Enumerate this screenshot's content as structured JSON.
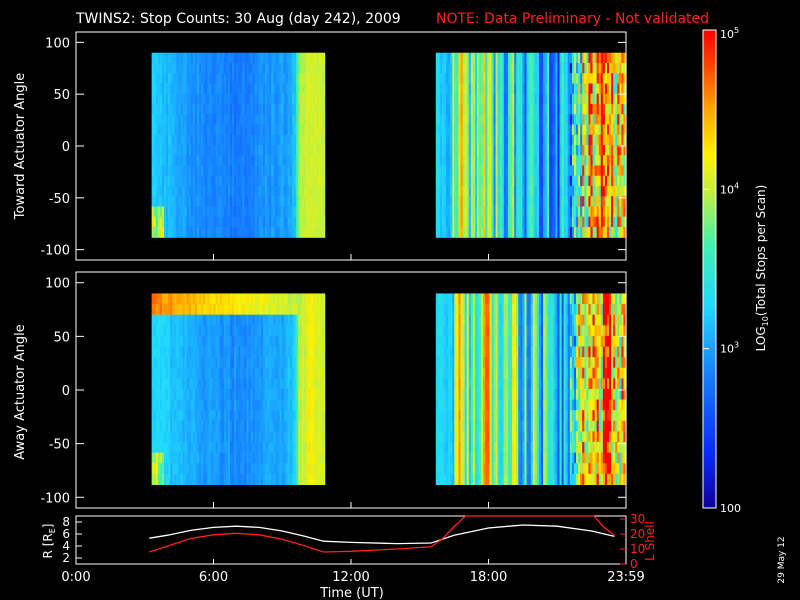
{
  "title": "TWINS2: Stop Counts: 30 Aug (day 242), 2009",
  "note": "NOTE: Data Preliminary - Not validated",
  "datestamp": "29 May 12",
  "colors": {
    "background": "#000000",
    "axis": "#ffffff",
    "note": "#ff2020",
    "l_shell": "#ff2020",
    "r_line": "#ffffff"
  },
  "colorbar": {
    "title": "LOG10(Total Stops per Scan)",
    "title_base": "LOG",
    "title_sub": "10",
    "title_rest": "(Total Stops per Scan)",
    "tick_labels": [
      "100",
      "10",
      "10",
      "10"
    ],
    "tick_exponents": [
      "",
      "3",
      "4",
      "5"
    ],
    "range_log10": [
      2,
      5
    ]
  },
  "chart_data": [
    {
      "type": "heatmap",
      "name": "toward",
      "ylabel": "Toward Actuator Angle",
      "ylim": [
        -110,
        110
      ],
      "yticks": [
        100,
        50,
        0,
        -50,
        -100
      ],
      "ytick_labels": [
        "100",
        "50",
        "0",
        "-50",
        "-100"
      ],
      "xlim_hours": [
        0,
        24
      ],
      "angle_range": [
        -88,
        90
      ],
      "segments": [
        {
          "start": 3.3,
          "end": 10.85
        },
        {
          "start": 15.7,
          "end": 24
        }
      ],
      "profile": [
        [
          3.3,
          3.2
        ],
        [
          4.0,
          3.1
        ],
        [
          5.0,
          2.95
        ],
        [
          6.0,
          2.85
        ],
        [
          7.0,
          2.85
        ],
        [
          8.0,
          2.9
        ],
        [
          9.0,
          3.0
        ],
        [
          9.5,
          3.1
        ],
        [
          9.7,
          3.9
        ],
        [
          10.2,
          4.1
        ],
        [
          10.85,
          4.0
        ],
        [
          15.7,
          3.3
        ],
        [
          16.3,
          3.0
        ],
        [
          16.6,
          4.3
        ],
        [
          17.3,
          3.3
        ],
        [
          17.8,
          4.0
        ],
        [
          18.4,
          3.3
        ],
        [
          19.0,
          3.5
        ],
        [
          20.0,
          3.2
        ],
        [
          21.0,
          3.0
        ],
        [
          22.0,
          3.6
        ],
        [
          22.5,
          4.6
        ],
        [
          24.0,
          4.5
        ]
      ]
    },
    {
      "type": "heatmap",
      "name": "away",
      "ylabel": "Away Actuator Angle",
      "ylim": [
        -110,
        110
      ],
      "yticks": [
        100,
        50,
        0,
        -50,
        -100
      ],
      "ytick_labels": [
        "100",
        "50",
        "0",
        "-50",
        "-100"
      ],
      "xlim_hours": [
        0,
        24
      ],
      "angle_range": [
        -88,
        90
      ],
      "segments": [
        {
          "start": 3.3,
          "end": 10.85
        },
        {
          "start": 15.7,
          "end": 24
        }
      ],
      "profile": [
        [
          3.3,
          3.3
        ],
        [
          4.0,
          3.2
        ],
        [
          5.0,
          3.05
        ],
        [
          6.0,
          2.95
        ],
        [
          7.0,
          2.9
        ],
        [
          8.0,
          2.95
        ],
        [
          9.0,
          3.05
        ],
        [
          9.5,
          3.2
        ],
        [
          9.7,
          3.9
        ],
        [
          10.2,
          4.2
        ],
        [
          10.85,
          4.0
        ],
        [
          15.7,
          3.3
        ],
        [
          16.3,
          3.2
        ],
        [
          16.6,
          4.4
        ],
        [
          17.3,
          3.4
        ],
        [
          17.8,
          4.2
        ],
        [
          18.4,
          3.4
        ],
        [
          19.0,
          3.6
        ],
        [
          20.0,
          3.4
        ],
        [
          21.0,
          3.2
        ],
        [
          22.0,
          3.7
        ],
        [
          22.5,
          4.6
        ],
        [
          24.0,
          4.5
        ]
      ],
      "band": {
        "angle_top": 90,
        "angle_bottom": 68,
        "value": 4.6,
        "hours": [
          3.3,
          9.6
        ]
      }
    },
    {
      "type": "line",
      "name": "orbit",
      "ylabel_left": "R [RE]",
      "ylabel_left_base": "R [R",
      "ylabel_left_sub": "E",
      "ylabel_left_end": "]",
      "ylim_left": [
        1,
        9
      ],
      "yticks_left": [
        2,
        4,
        6,
        8
      ],
      "ytick_labels_left": [
        "2",
        "4",
        "6",
        "8"
      ],
      "ylabel_right": "L Shell",
      "ylim_right": [
        0,
        32
      ],
      "yticks_right": [
        0,
        10,
        20,
        30
      ],
      "ytick_labels_right": [
        "0",
        "10",
        "20",
        "30"
      ],
      "xlabel": "Time (UT)",
      "xlim_hours": [
        0,
        24
      ],
      "xticks": [
        0,
        6,
        12,
        18,
        24
      ],
      "xtick_labels": [
        "0:00",
        "6:00",
        "12:00",
        "18:00",
        "23:59"
      ],
      "series": [
        {
          "name": "R",
          "axis": "left",
          "x": [
            3.2,
            4,
            5,
            6,
            7,
            8,
            9,
            10,
            10.8,
            12,
            14,
            15.5,
            16.5,
            18,
            19.5,
            21,
            22.5,
            23.5
          ],
          "y": [
            5.3,
            5.8,
            6.6,
            7.1,
            7.3,
            7.1,
            6.5,
            5.6,
            4.8,
            4.6,
            4.4,
            4.5,
            5.8,
            7.0,
            7.5,
            7.3,
            6.5,
            5.6
          ]
        },
        {
          "name": "L Shell",
          "axis": "right",
          "x": [
            3.2,
            4,
            5,
            6,
            7,
            8,
            9,
            10,
            10.8,
            12,
            14,
            15.5,
            16.0,
            16.5,
            17.0,
            22.6,
            23.0,
            23.5
          ],
          "y": [
            8,
            12,
            17,
            19.5,
            20.5,
            19.5,
            16.5,
            12,
            8,
            8.5,
            10,
            11.5,
            17,
            25,
            32,
            32,
            25,
            19
          ]
        }
      ]
    }
  ]
}
